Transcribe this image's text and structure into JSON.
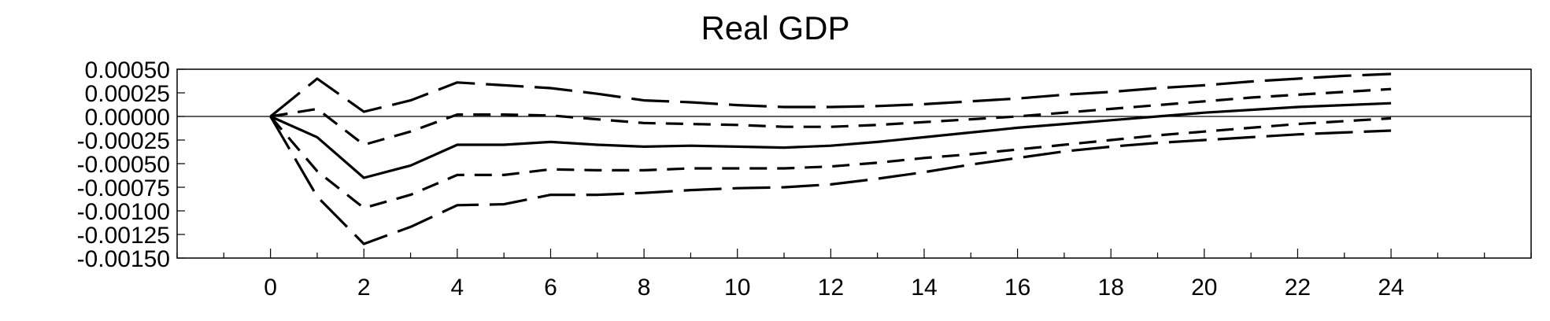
{
  "chart_data": {
    "type": "line",
    "title": "Real GDP",
    "xlabel": "",
    "ylabel": "",
    "x": [
      0,
      1,
      2,
      3,
      4,
      5,
      6,
      7,
      8,
      9,
      10,
      11,
      12,
      13,
      14,
      15,
      16,
      17,
      18,
      19,
      20,
      21,
      22,
      23,
      24
    ],
    "xticks": [
      0,
      2,
      4,
      6,
      8,
      10,
      12,
      14,
      16,
      18,
      20,
      22,
      24
    ],
    "xtick_labels": [
      "0",
      "2",
      "4",
      "6",
      "8",
      "10",
      "12",
      "14",
      "16",
      "18",
      "20",
      "22",
      "24"
    ],
    "xlim": [
      -2,
      27
    ],
    "ylim": [
      -0.0015,
      0.0005
    ],
    "yticks": [
      0.0005,
      0.00025,
      0.0,
      -0.00025,
      -0.0005,
      -0.00075,
      -0.001,
      -0.00125,
      -0.0015
    ],
    "ytick_labels": [
      "0.00050",
      "0.00025",
      "0.00000",
      "-0.00025",
      "-0.00050",
      "-0.00075",
      "-0.00100",
      "-0.00125",
      "-0.00150"
    ],
    "zero_line": true,
    "grid": false,
    "series": [
      {
        "style": "solid",
        "values": [
          0,
          -0.00022,
          -0.00065,
          -0.00052,
          -0.0003,
          -0.0003,
          -0.00027,
          -0.0003,
          -0.00032,
          -0.00031,
          -0.00032,
          -0.00033,
          -0.00031,
          -0.00027,
          -0.00022,
          -0.00017,
          -0.00012,
          -8e-05,
          -4e-05,
          0.0,
          4e-05,
          7e-05,
          0.0001,
          0.00012,
          0.00014
        ]
      },
      {
        "style": "short-dash",
        "values": [
          0,
          8e-05,
          -0.0003,
          -0.00016,
          2e-05,
          2e-05,
          1e-05,
          -3e-05,
          -7e-05,
          -8e-05,
          -9e-05,
          -0.00011,
          -0.00011,
          -9e-05,
          -6e-05,
          -3e-05,
          0.0,
          4e-05,
          8e-05,
          0.00012,
          0.00016,
          0.0002,
          0.00023,
          0.00026,
          0.00029
        ]
      },
      {
        "style": "short-dash",
        "values": [
          0,
          -0.00058,
          -0.00097,
          -0.00083,
          -0.00062,
          -0.00062,
          -0.00056,
          -0.00057,
          -0.00057,
          -0.00055,
          -0.00055,
          -0.00055,
          -0.00053,
          -0.00049,
          -0.00044,
          -0.0004,
          -0.00035,
          -0.0003,
          -0.00025,
          -0.0002,
          -0.00016,
          -0.00012,
          -8e-05,
          -5e-05,
          -2e-05
        ]
      },
      {
        "style": "long-dash",
        "values": [
          0,
          0.0004,
          5e-05,
          0.00017,
          0.00036,
          0.00033,
          0.0003,
          0.00024,
          0.00017,
          0.00015,
          0.00012,
          0.0001,
          0.0001,
          0.00011,
          0.00013,
          0.00016,
          0.00019,
          0.00023,
          0.00026,
          0.0003,
          0.00033,
          0.00037,
          0.0004,
          0.00043,
          0.00045
        ]
      },
      {
        "style": "long-dash",
        "values": [
          0,
          -0.00085,
          -0.00135,
          -0.00117,
          -0.00094,
          -0.00093,
          -0.00083,
          -0.00083,
          -0.00081,
          -0.00078,
          -0.00076,
          -0.00075,
          -0.00072,
          -0.00066,
          -0.00059,
          -0.00051,
          -0.00044,
          -0.00037,
          -0.00032,
          -0.00028,
          -0.00025,
          -0.00022,
          -0.00019,
          -0.00017,
          -0.00015
        ]
      }
    ]
  }
}
